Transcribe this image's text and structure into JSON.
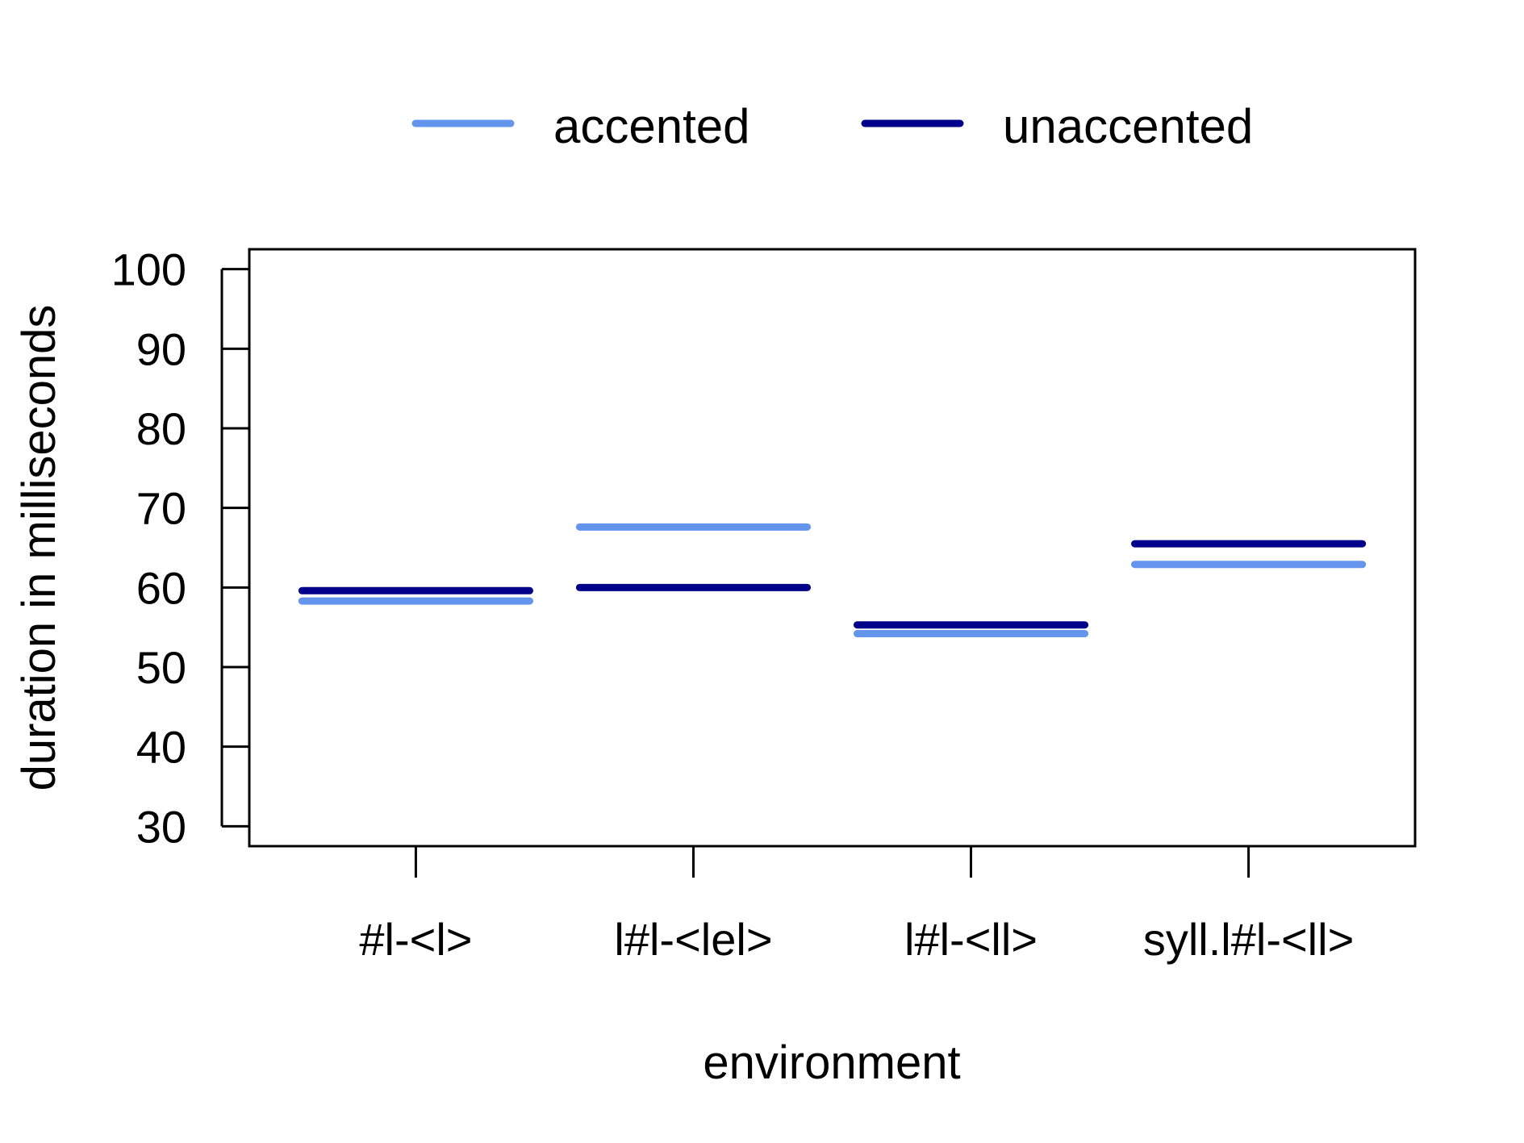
{
  "chart_data": {
    "type": "line",
    "title": "",
    "xlabel": "environment",
    "ylabel": "duration in milliseconds",
    "categories": [
      "#l-<l>",
      "l#l-<lel>",
      "l#l-<ll>",
      "syll.l#l-<ll>"
    ],
    "yticks": [
      30,
      40,
      50,
      60,
      70,
      80,
      90,
      100
    ],
    "ylim": [
      27.5,
      102.5
    ],
    "grid": false,
    "legend_position": "top",
    "series": [
      {
        "name": "accented",
        "color": "#6495ED",
        "values": [
          58.3,
          67.6,
          54.2,
          62.9
        ]
      },
      {
        "name": "unaccented",
        "color": "#00008B",
        "values": [
          59.6,
          60.0,
          55.3,
          65.5
        ]
      }
    ]
  }
}
